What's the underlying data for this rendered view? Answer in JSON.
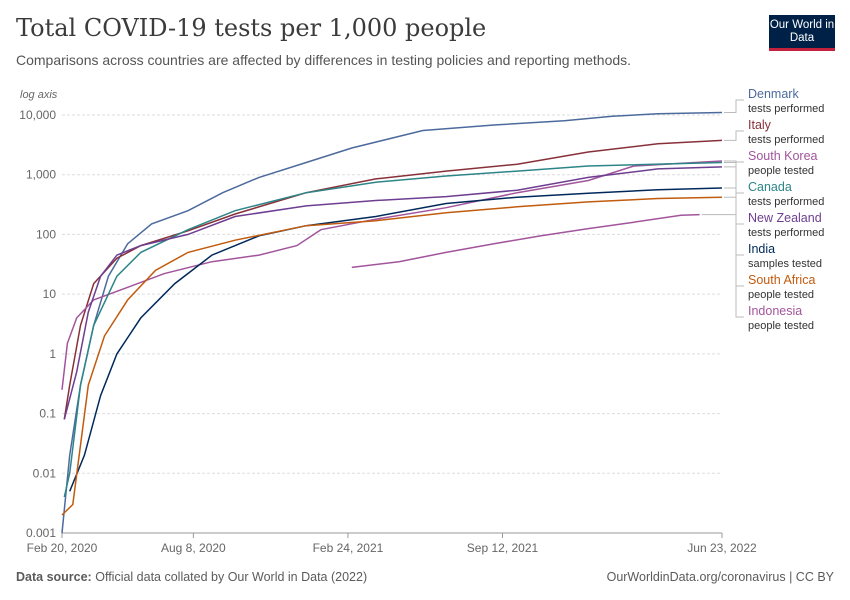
{
  "header": {
    "title": "Total COVID-19 tests per 1,000 people",
    "subtitle": "Comparisons across countries are affected by differences in testing policies and reporting methods.",
    "logo": "Our World in Data"
  },
  "footer": {
    "source_label": "Data source:",
    "source_text": "Official data collated by Our World in Data (2022)",
    "credit": "OurWorldinData.org/coronavirus | CC BY"
  },
  "chart_data": {
    "type": "line",
    "y_scale": "log",
    "y_axis_note": "log axis",
    "ylim": [
      0.001,
      10000
    ],
    "y_ticks": [
      0.001,
      0.01,
      0.1,
      1,
      10,
      100,
      1000,
      10000
    ],
    "y_tick_labels": [
      "0.001",
      "0.01",
      "0.1",
      "1",
      "10",
      "100",
      "1,000",
      "10,000"
    ],
    "xlim": [
      "2020-02-20",
      "2022-06-23"
    ],
    "x_ticks": [
      "2020-02-20",
      "2020-08-08",
      "2021-02-24",
      "2021-09-12",
      "2022-06-23"
    ],
    "x_tick_labels": [
      "Feb 20, 2020",
      "Aug 8, 2020",
      "Feb 24, 2021",
      "Sep 12, 2021",
      "Jun 23, 2022"
    ],
    "grid": true,
    "legend": "right",
    "series": [
      {
        "name": "Denmark",
        "sublabel": "tests performed",
        "color": "#4c6a9c",
        "points": [
          [
            "2020-02-20",
            0.001
          ],
          [
            "2020-03-01",
            0.02
          ],
          [
            "2020-03-15",
            0.3
          ],
          [
            "2020-04-01",
            3
          ],
          [
            "2020-04-20",
            20
          ],
          [
            "2020-05-15",
            70
          ],
          [
            "2020-06-15",
            150
          ],
          [
            "2020-08-01",
            250
          ],
          [
            "2020-09-15",
            500
          ],
          [
            "2020-11-01",
            900
          ],
          [
            "2021-01-01",
            1600
          ],
          [
            "2021-03-01",
            2800
          ],
          [
            "2021-06-01",
            5500
          ],
          [
            "2021-09-01",
            6800
          ],
          [
            "2021-12-01",
            8000
          ],
          [
            "2022-02-01",
            9500
          ],
          [
            "2022-04-01",
            10500
          ],
          [
            "2022-06-23",
            11000
          ]
        ]
      },
      {
        "name": "Italy",
        "sublabel": "tests performed",
        "color": "#883039",
        "points": [
          [
            "2020-02-23",
            0.08
          ],
          [
            "2020-03-01",
            0.3
          ],
          [
            "2020-03-15",
            3
          ],
          [
            "2020-04-01",
            15
          ],
          [
            "2020-05-01",
            40
          ],
          [
            "2020-06-01",
            65
          ],
          [
            "2020-08-01",
            115
          ],
          [
            "2020-10-01",
            220
          ],
          [
            "2021-01-01",
            500
          ],
          [
            "2021-04-01",
            850
          ],
          [
            "2021-07-01",
            1150
          ],
          [
            "2021-10-01",
            1500
          ],
          [
            "2022-01-01",
            2400
          ],
          [
            "2022-04-01",
            3300
          ],
          [
            "2022-06-23",
            3750
          ]
        ]
      },
      {
        "name": "South Korea",
        "sublabel": "people tested",
        "color": "#a2559c",
        "points": [
          [
            "2020-02-20",
            0.25
          ],
          [
            "2020-02-27",
            1.5
          ],
          [
            "2020-03-10",
            4
          ],
          [
            "2020-04-01",
            8
          ],
          [
            "2020-05-15",
            13
          ],
          [
            "2020-07-01",
            22
          ],
          [
            "2020-09-01",
            35
          ],
          [
            "2020-11-01",
            45
          ],
          [
            "2020-12-20",
            65
          ],
          [
            "2021-01-20",
            120
          ],
          [
            "2021-04-01",
            180
          ],
          [
            "2021-07-01",
            280
          ],
          [
            "2021-10-01",
            500
          ],
          [
            "2022-01-01",
            800
          ],
          [
            "2022-03-01",
            1400
          ],
          [
            "2022-06-23",
            1700
          ]
        ]
      },
      {
        "name": "Canada",
        "sublabel": "tests performed",
        "color": "#2d8587",
        "points": [
          [
            "2020-02-23",
            0.004
          ],
          [
            "2020-03-01",
            0.01
          ],
          [
            "2020-03-15",
            0.3
          ],
          [
            "2020-04-01",
            3
          ],
          [
            "2020-05-01",
            20
          ],
          [
            "2020-06-01",
            50
          ],
          [
            "2020-08-01",
            120
          ],
          [
            "2020-10-01",
            250
          ],
          [
            "2021-01-01",
            500
          ],
          [
            "2021-04-01",
            750
          ],
          [
            "2021-07-01",
            950
          ],
          [
            "2021-10-01",
            1150
          ],
          [
            "2022-01-01",
            1400
          ],
          [
            "2022-06-23",
            1600
          ]
        ]
      },
      {
        "name": "New Zealand",
        "sublabel": "tests performed",
        "color": "#6d3e91",
        "points": [
          [
            "2020-02-23",
            0.08
          ],
          [
            "2020-03-10",
            0.5
          ],
          [
            "2020-03-25",
            5
          ],
          [
            "2020-04-10",
            20
          ],
          [
            "2020-05-01",
            45
          ],
          [
            "2020-06-01",
            65
          ],
          [
            "2020-08-01",
            100
          ],
          [
            "2020-10-01",
            200
          ],
          [
            "2021-01-01",
            300
          ],
          [
            "2021-04-01",
            370
          ],
          [
            "2021-07-01",
            430
          ],
          [
            "2021-10-01",
            550
          ],
          [
            "2022-01-01",
            900
          ],
          [
            "2022-04-01",
            1250
          ],
          [
            "2022-06-23",
            1350
          ]
        ]
      },
      {
        "name": "India",
        "sublabel": "samples tested",
        "color": "#00295b",
        "points": [
          [
            "2020-03-01",
            0.005
          ],
          [
            "2020-03-20",
            0.02
          ],
          [
            "2020-04-10",
            0.2
          ],
          [
            "2020-05-01",
            1
          ],
          [
            "2020-06-01",
            4
          ],
          [
            "2020-07-15",
            15
          ],
          [
            "2020-09-01",
            45
          ],
          [
            "2020-11-01",
            95
          ],
          [
            "2021-01-01",
            140
          ],
          [
            "2021-04-01",
            200
          ],
          [
            "2021-07-01",
            330
          ],
          [
            "2021-10-01",
            420
          ],
          [
            "2022-01-01",
            490
          ],
          [
            "2022-04-01",
            560
          ],
          [
            "2022-06-23",
            600
          ]
        ]
      },
      {
        "name": "South Africa",
        "sublabel": "people tested",
        "color": "#c15b0e",
        "points": [
          [
            "2020-02-20",
            0.002
          ],
          [
            "2020-03-05",
            0.003
          ],
          [
            "2020-03-25",
            0.3
          ],
          [
            "2020-04-15",
            2
          ],
          [
            "2020-05-15",
            8
          ],
          [
            "2020-06-20",
            25
          ],
          [
            "2020-08-01",
            50
          ],
          [
            "2020-10-01",
            80
          ],
          [
            "2021-01-01",
            140
          ],
          [
            "2021-04-01",
            170
          ],
          [
            "2021-07-01",
            230
          ],
          [
            "2021-10-01",
            290
          ],
          [
            "2022-01-01",
            350
          ],
          [
            "2022-04-01",
            400
          ],
          [
            "2022-06-23",
            420
          ]
        ]
      },
      {
        "name": "Indonesia",
        "sublabel": "people tested",
        "color": "#a2559c",
        "points": [
          [
            "2021-03-01",
            28
          ],
          [
            "2021-05-01",
            35
          ],
          [
            "2021-07-01",
            50
          ],
          [
            "2021-09-01",
            70
          ],
          [
            "2021-11-01",
            95
          ],
          [
            "2022-01-01",
            125
          ],
          [
            "2022-03-01",
            160
          ],
          [
            "2022-05-01",
            210
          ],
          [
            "2022-05-25",
            215
          ]
        ]
      }
    ]
  }
}
